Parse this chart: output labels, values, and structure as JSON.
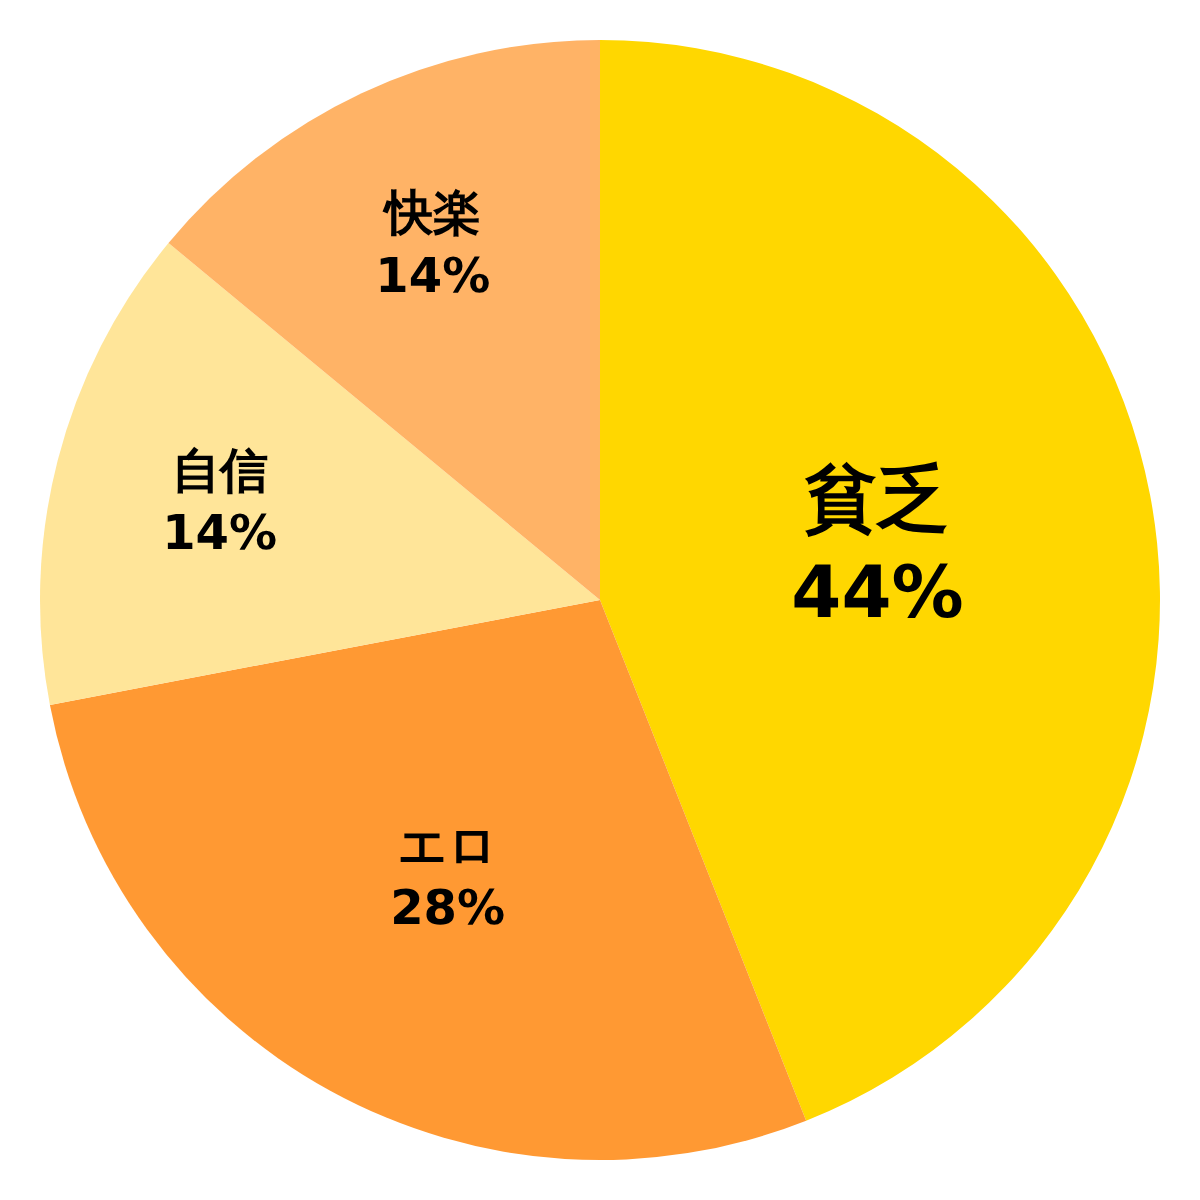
{
  "chart_data": {
    "type": "pie",
    "categories": [
      "貧乏",
      "エロ",
      "自信",
      "快楽"
    ],
    "values": [
      44,
      28,
      14,
      14
    ],
    "value_labels": [
      "44%",
      "28%",
      "14%",
      "14%"
    ],
    "colors": [
      "#ffd700",
      "#ff9933",
      "#ffe599",
      "#ffb366"
    ]
  }
}
